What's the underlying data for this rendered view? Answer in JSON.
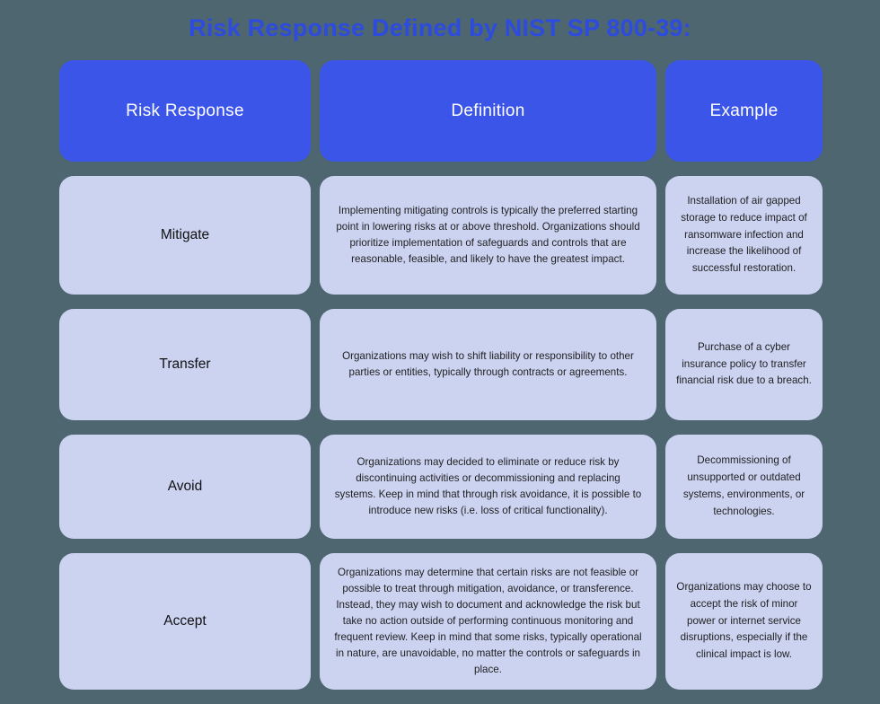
{
  "title": "Risk Response Defined by NIST SP 800-39:",
  "table": {
    "headers": {
      "response": "Risk Response",
      "definition": "Definition",
      "example": "Example"
    },
    "rows": [
      {
        "response": "Mitigate",
        "definition": "Implementing mitigating controls is typically the preferred starting point in lowering risks at or above threshold. Organizations should prioritize implementation of safeguards and controls that are reasonable, feasible, and likely to have the greatest impact.",
        "example": "Installation of air gapped storage to reduce impact of ransomware infection and increase the likelihood of successful restoration."
      },
      {
        "response": "Transfer",
        "definition": "Organizations may wish to shift liability or responsibility to other parties or entities, typically through contracts or agreements.",
        "example": "Purchase of a cyber insurance policy to transfer financial risk due to a breach."
      },
      {
        "response": "Avoid",
        "definition": "Organizations may decided to eliminate or reduce risk by discontinuing activities or decommissioning and replacing systems. Keep in mind that through risk avoidance, it is possible to introduce new risks (i.e. loss of critical functionality).",
        "example": "Decommissioning of unsupported or outdated systems, environments, or technologies."
      },
      {
        "response": "Accept",
        "definition": "Organizations may determine that certain risks are not feasible or possible to treat through mitigation, avoidance, or transference. Instead, they may wish to document and acknowledge the risk but take no action outside of performing continuous monitoring and frequent review. Keep in mind that some risks, typically operational in nature, are unavoidable, no matter the controls or safeguards in place.",
        "example": "Organizations may choose to accept the risk of minor power or internet service disruptions, especially if the clinical impact is low."
      }
    ]
  },
  "colors": {
    "background": "#4D6670",
    "header_blue": "#3B55E9",
    "title_blue": "#2E4BE0",
    "cell_lavender": "#CCD3F1",
    "body_text": "#1F1F1F",
    "header_text": "#FFFFFF"
  }
}
